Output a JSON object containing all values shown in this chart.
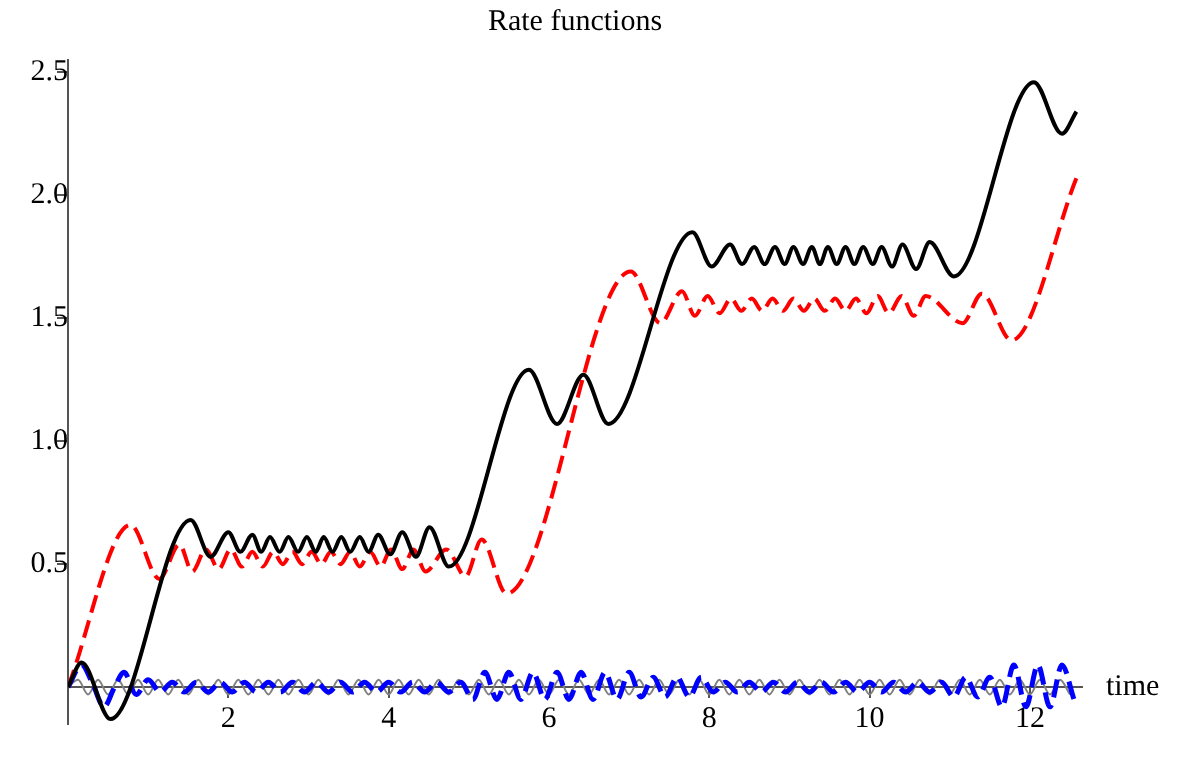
{
  "chart_data": {
    "type": "line",
    "title": "Rate functions",
    "xlabel": "time",
    "xlim": [
      0,
      12.65
    ],
    "xticks": [
      2,
      4,
      6,
      8,
      10,
      12
    ],
    "ylim": [
      -0.15,
      2.55
    ],
    "yticks": [
      0.5,
      {
        "value": 1,
        "label": "1.0"
      },
      1.5,
      {
        "value": 2,
        "label": "2.0"
      },
      2.5
    ],
    "grid": false,
    "legend": false,
    "series": [
      {
        "color": "#000000",
        "line_style": "solid",
        "x": [
          0,
          0.17,
          0.53,
          1.53,
          1.78,
          2.0,
          2.15,
          2.3,
          2.41,
          2.52,
          2.64,
          2.75,
          2.87,
          2.98,
          3.09,
          3.19,
          3.3,
          3.41,
          3.52,
          3.64,
          3.75,
          3.87,
          4.02,
          4.17,
          4.34,
          4.51,
          4.75,
          5.75,
          6.1,
          6.43,
          6.74,
          7.79,
          8.03,
          8.26,
          8.41,
          8.56,
          8.69,
          8.82,
          8.94,
          9.05,
          9.17,
          9.28,
          9.38,
          9.48,
          9.59,
          9.7,
          9.81,
          9.92,
          10.04,
          10.15,
          10.28,
          10.41,
          10.58,
          10.75,
          11.05,
          12.05,
          12.4,
          12.58
        ],
        "values": [
          0,
          0.1,
          -0.13,
          0.68,
          0.53,
          0.63,
          0.55,
          0.62,
          0.55,
          0.61,
          0.55,
          0.61,
          0.55,
          0.61,
          0.55,
          0.61,
          0.55,
          0.61,
          0.55,
          0.61,
          0.55,
          0.62,
          0.54,
          0.63,
          0.53,
          0.65,
          0.49,
          1.29,
          1.07,
          1.27,
          1.07,
          1.85,
          1.71,
          1.8,
          1.72,
          1.79,
          1.72,
          1.79,
          1.72,
          1.79,
          1.72,
          1.79,
          1.72,
          1.79,
          1.72,
          1.79,
          1.72,
          1.79,
          1.72,
          1.79,
          1.71,
          1.8,
          1.7,
          1.81,
          1.67,
          2.46,
          2.25,
          2.34
        ]
      },
      {
        "color": "#ff0000",
        "line_style": "dashed",
        "x": [
          0,
          0.78,
          1.14,
          1.39,
          1.55,
          1.72,
          1.88,
          2.03,
          2.17,
          2.3,
          2.43,
          2.56,
          2.68,
          2.8,
          2.92,
          3.04,
          3.16,
          3.28,
          3.4,
          3.52,
          3.64,
          3.77,
          3.9,
          4.03,
          4.17,
          4.31,
          4.46,
          4.72,
          4.96,
          5.16,
          5.47,
          7.02,
          7.39,
          7.66,
          7.82,
          7.98,
          8.13,
          8.27,
          8.4,
          8.53,
          8.66,
          8.79,
          8.92,
          9.05,
          9.18,
          9.31,
          9.44,
          9.57,
          9.7,
          9.83,
          9.96,
          10.1,
          10.24,
          10.4,
          10.55,
          10.7,
          11.16,
          11.4,
          11.77,
          12.58
        ],
        "values": [
          0,
          0.66,
          0.44,
          0.58,
          0.47,
          0.56,
          0.48,
          0.56,
          0.49,
          0.55,
          0.49,
          0.55,
          0.5,
          0.55,
          0.5,
          0.55,
          0.5,
          0.55,
          0.5,
          0.55,
          0.49,
          0.55,
          0.49,
          0.56,
          0.48,
          0.56,
          0.47,
          0.56,
          0.45,
          0.6,
          0.38,
          1.69,
          1.48,
          1.61,
          1.51,
          1.59,
          1.52,
          1.58,
          1.53,
          1.58,
          1.53,
          1.58,
          1.53,
          1.58,
          1.53,
          1.58,
          1.53,
          1.58,
          1.53,
          1.58,
          1.52,
          1.59,
          1.52,
          1.59,
          1.51,
          1.59,
          1.48,
          1.6,
          1.41,
          2.07
        ]
      },
      {
        "color": "#0000ff",
        "line_style": "dashed",
        "x": [
          0,
          0.17,
          0.3,
          0.45,
          0.58,
          0.7,
          0.85,
          1,
          1.15,
          1.3,
          1.45,
          1.6,
          1.75,
          1.9,
          2.05,
          2.2,
          2.35,
          2.5,
          2.65,
          2.8,
          2.95,
          3.1,
          3.25,
          3.4,
          3.55,
          3.7,
          3.85,
          4,
          4.15,
          4.3,
          4.45,
          4.6,
          4.75,
          4.9,
          5.05,
          5.2,
          5.35,
          5.5,
          5.65,
          5.8,
          5.95,
          6.1,
          6.25,
          6.4,
          6.55,
          6.7,
          6.85,
          7,
          7.15,
          7.3,
          7.45,
          7.6,
          7.75,
          7.9,
          8.05,
          8.2,
          8.35,
          8.5,
          8.65,
          8.8,
          8.95,
          9.1,
          9.25,
          9.4,
          9.55,
          9.7,
          9.85,
          10,
          10.15,
          10.3,
          10.45,
          10.6,
          10.75,
          10.9,
          11.05,
          11.2,
          11.35,
          11.5,
          11.65,
          11.8,
          11.95,
          12.1,
          12.25,
          12.4,
          12.55
        ],
        "values": [
          0,
          0.09,
          0.02,
          -0.08,
          0,
          0.06,
          -0.03,
          0.03,
          -0.02,
          0.02,
          -0.02,
          0.02,
          -0.02,
          0.02,
          -0.02,
          0.02,
          -0.02,
          0.02,
          -0.02,
          0.02,
          -0.02,
          0.02,
          -0.02,
          0.02,
          -0.02,
          0.02,
          -0.02,
          0.02,
          -0.02,
          0.02,
          -0.02,
          0.02,
          -0.02,
          0.02,
          -0.05,
          0.06,
          -0.05,
          0.06,
          -0.05,
          0.06,
          -0.05,
          0.06,
          -0.05,
          0.06,
          -0.05,
          0.06,
          -0.05,
          0.06,
          -0.04,
          0.04,
          -0.04,
          0.04,
          -0.04,
          0.04,
          -0.02,
          0.02,
          -0.02,
          0.02,
          -0.02,
          0.02,
          -0.02,
          0.02,
          -0.02,
          0.02,
          -0.02,
          0.02,
          -0.02,
          0.02,
          -0.02,
          0.02,
          -0.02,
          0.02,
          -0.02,
          0.02,
          -0.04,
          0.04,
          -0.04,
          0.04,
          -0.08,
          0.09,
          -0.08,
          0.09,
          -0.08,
          0.09,
          -0.05
        ]
      },
      {
        "color": "#808080",
        "line_style": "solid",
        "x": [
          0,
          0.125,
          0.25,
          0.375,
          0.5,
          0.625,
          0.75,
          0.875,
          1,
          1.125,
          1.25,
          1.375,
          1.5,
          1.625,
          1.75,
          1.875,
          2,
          2.125,
          2.25,
          2.375,
          2.5,
          2.625,
          2.75,
          2.875,
          3,
          3.125,
          3.25,
          3.375,
          3.5,
          3.625,
          3.75,
          3.875,
          4,
          4.125,
          4.25,
          4.375,
          4.5,
          4.625,
          4.75,
          4.875,
          5,
          5.125,
          5.25,
          5.375,
          5.5,
          5.625,
          5.75,
          5.875,
          6,
          6.125,
          6.25,
          6.375,
          6.5,
          6.625,
          6.75,
          6.875,
          7,
          7.125,
          7.25,
          7.375,
          7.5,
          7.625,
          7.75,
          7.875,
          8,
          8.125,
          8.25,
          8.375,
          8.5,
          8.625,
          8.75,
          8.875,
          9,
          9.125,
          9.25,
          9.375,
          9.5,
          9.625,
          9.75,
          9.875,
          10,
          10.125,
          10.25,
          10.375,
          10.5,
          10.625,
          10.75,
          10.875,
          11,
          11.125,
          11.25,
          11.375,
          11.5,
          11.625,
          11.75,
          11.875,
          12,
          12.125,
          12.25,
          12.375,
          12.5
        ],
        "values": [
          0,
          0.03,
          -0.03,
          0.03,
          -0.03,
          0.03,
          -0.03,
          0.03,
          -0.03,
          0.03,
          -0.03,
          0.03,
          -0.03,
          0.03,
          -0.03,
          0.03,
          -0.03,
          0.03,
          -0.03,
          0.03,
          -0.03,
          0.03,
          -0.03,
          0.03,
          -0.03,
          0.03,
          -0.03,
          0.03,
          -0.03,
          0.03,
          -0.03,
          0.03,
          -0.03,
          0.03,
          -0.03,
          0.03,
          -0.03,
          0.03,
          -0.03,
          0.03,
          -0.03,
          0.03,
          -0.03,
          0.03,
          -0.03,
          0.03,
          -0.03,
          0.03,
          -0.03,
          0.03,
          -0.03,
          0.03,
          -0.03,
          0.03,
          -0.03,
          0.03,
          -0.03,
          0.03,
          -0.03,
          0.03,
          -0.03,
          0.03,
          -0.03,
          0.03,
          -0.03,
          0.03,
          -0.03,
          0.03,
          -0.03,
          0.03,
          -0.03,
          0.03,
          -0.03,
          0.03,
          -0.03,
          0.03,
          -0.03,
          0.03,
          -0.03,
          0.03,
          -0.03,
          0.03,
          -0.03,
          0.03,
          -0.03,
          0.03,
          -0.03,
          0.03,
          -0.03,
          0.03,
          -0.03,
          0.03,
          -0.03,
          0.03,
          -0.03,
          0.03,
          -0.03,
          0.03,
          -0.03,
          0.03,
          -0.03
        ]
      }
    ]
  }
}
